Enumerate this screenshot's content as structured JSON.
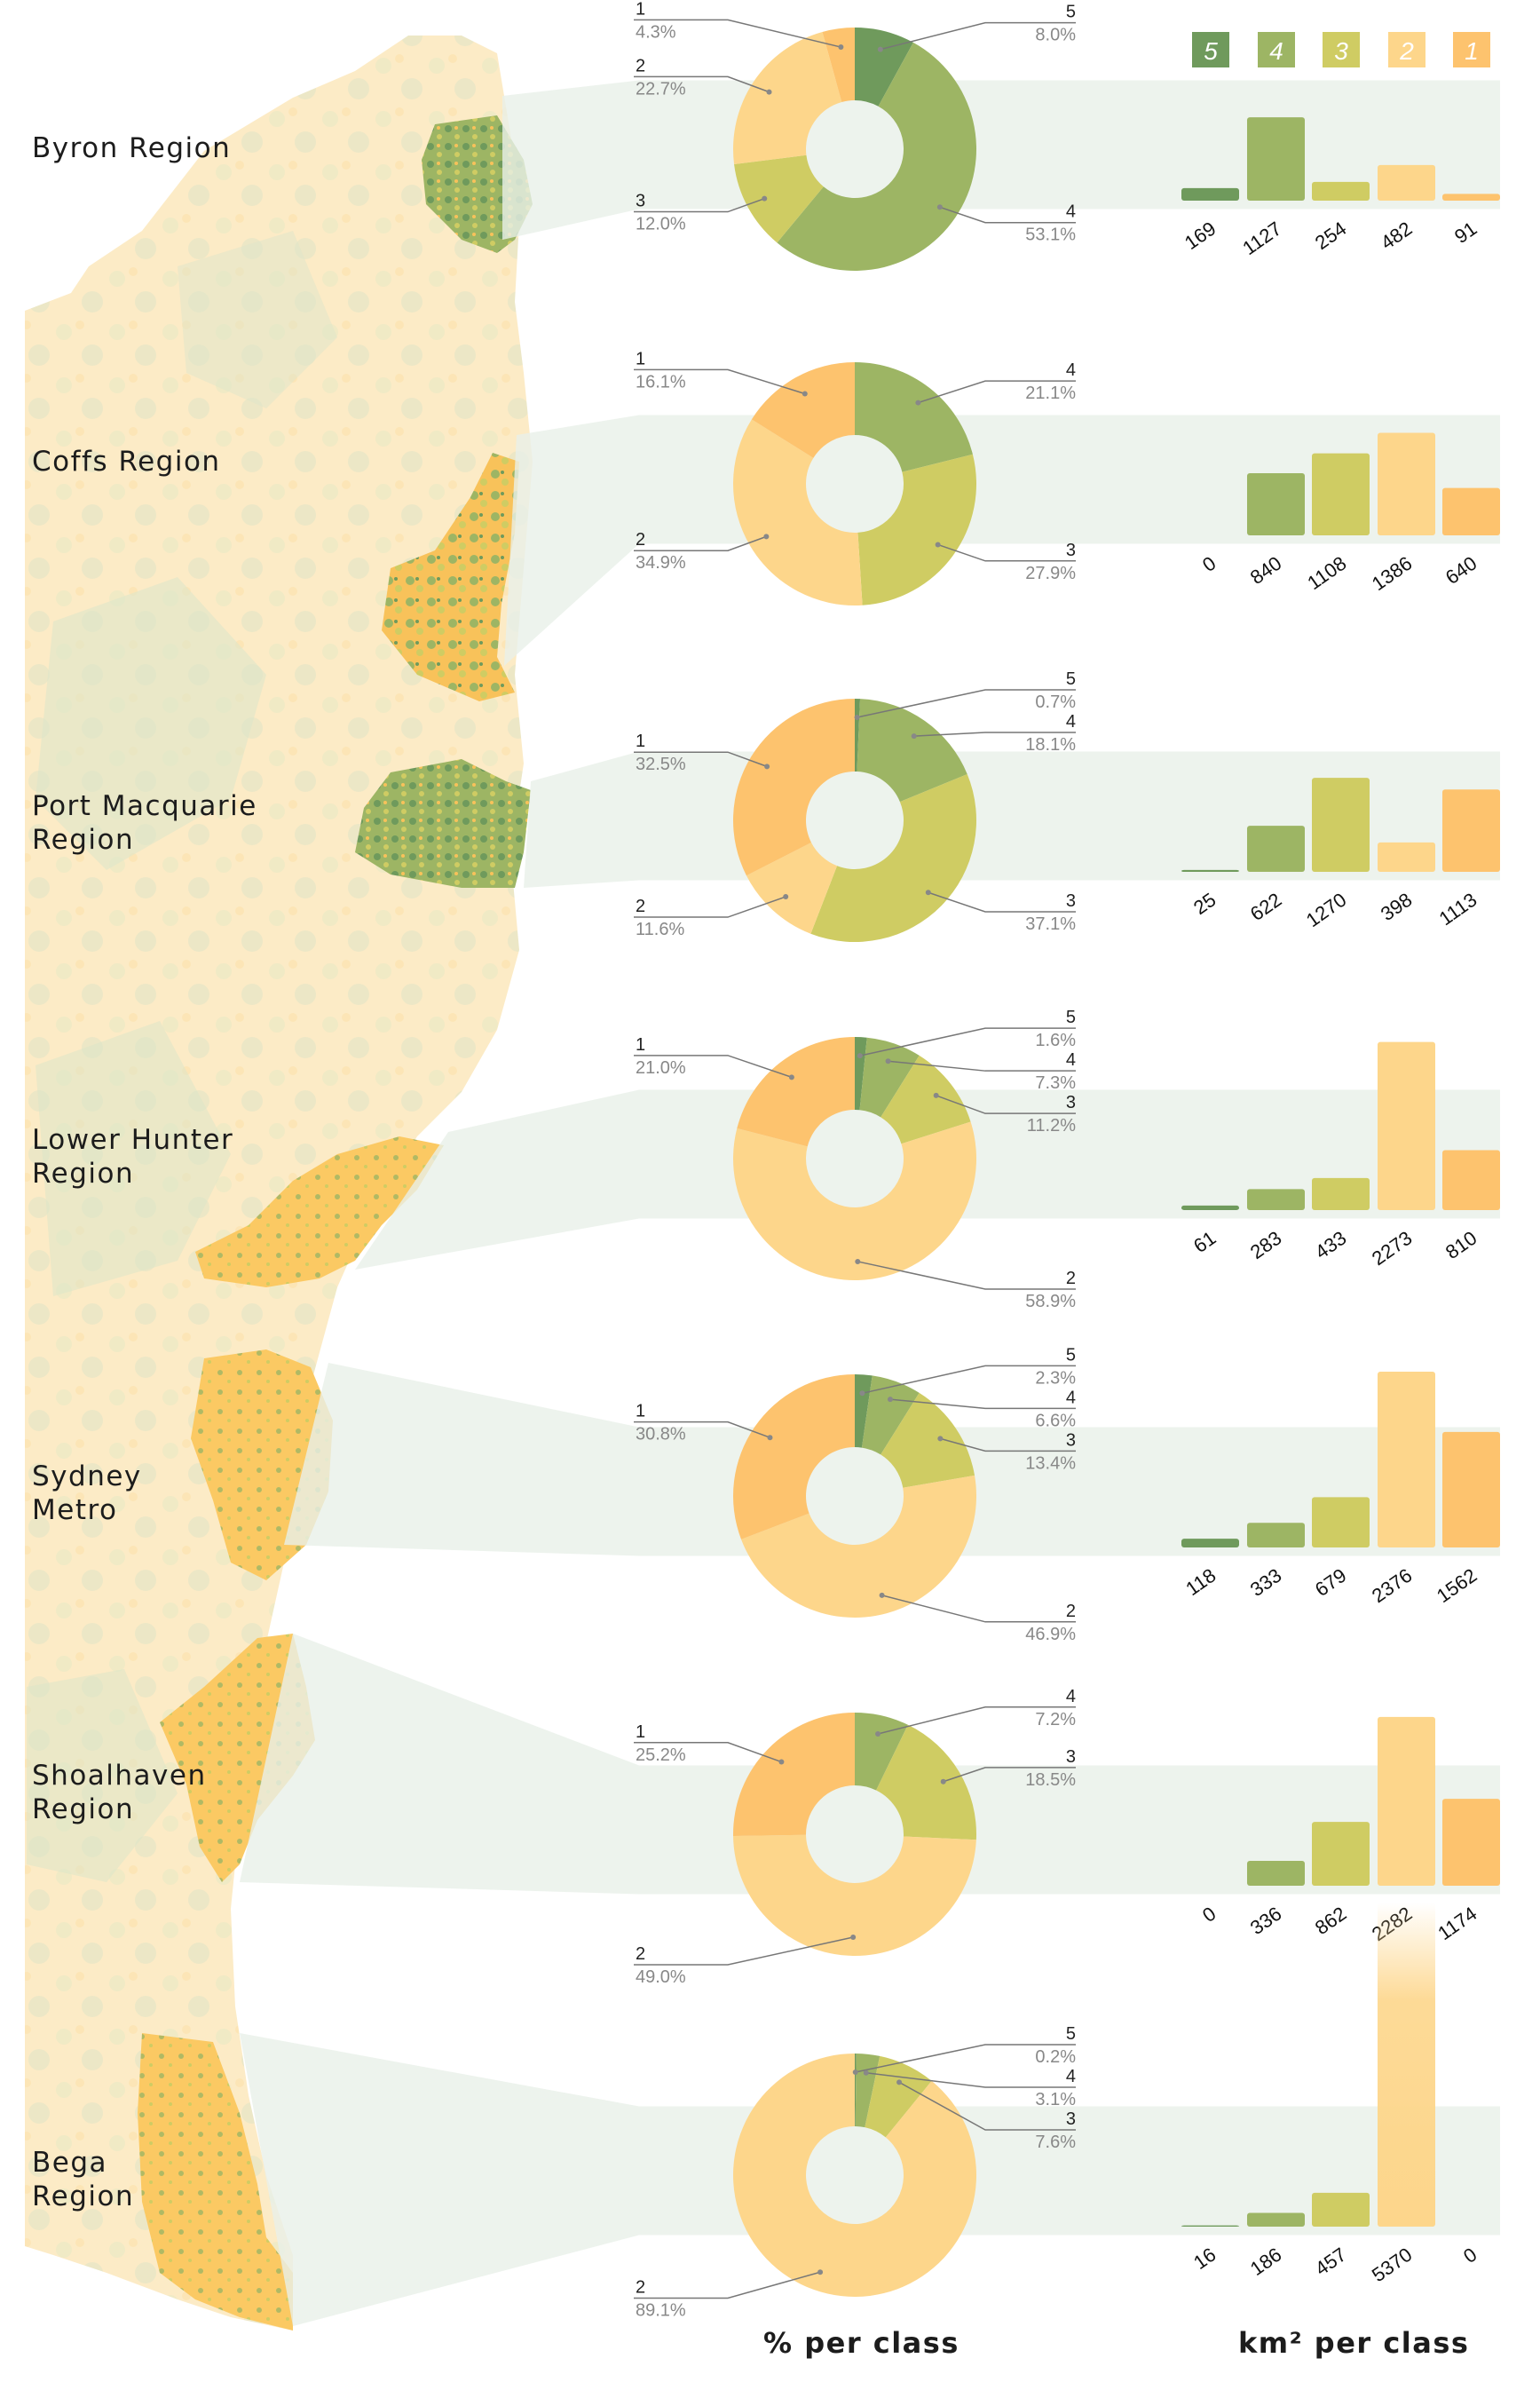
{
  "footer": {
    "pie_label": "% per class",
    "bar_label": "km² per class"
  },
  "legend": [
    "5",
    "4",
    "3",
    "2",
    "1"
  ],
  "class_colors": {
    "5": "#6f9a5c",
    "4": "#9db564",
    "3": "#cfcc63",
    "2": "#fdd68b",
    "1": "#fdc36e"
  },
  "chart_data": [
    {
      "type": "donut",
      "region": "Byron Region",
      "percent": {
        "5": 8.0,
        "4": 53.1,
        "3": 12.0,
        "2": 22.7,
        "1": 4.3
      },
      "percent_labels": {
        "5": "8.0%",
        "4": "53.1%",
        "3": "12.0%",
        "2": "22.7%",
        "1": "4.3%"
      },
      "area_km2": {
        "5": 169,
        "4": 1127,
        "3": 254,
        "2": 482,
        "1": 91
      }
    },
    {
      "type": "donut",
      "region": "Coffs Region",
      "percent": {
        "5": 0,
        "4": 21.1,
        "3": 27.9,
        "2": 34.9,
        "1": 16.1
      },
      "percent_labels": {
        "4": "21.1%",
        "3": "27.9%",
        "2": "34.9%",
        "1": "16.1%"
      },
      "area_km2": {
        "5": 0,
        "4": 840,
        "3": 1108,
        "2": 1386,
        "1": 640
      }
    },
    {
      "type": "donut",
      "region": "Port Macquarie Region",
      "percent": {
        "5": 0.7,
        "4": 18.1,
        "3": 37.1,
        "2": 11.6,
        "1": 32.5
      },
      "percent_labels": {
        "5": "0.7%",
        "4": "18.1%",
        "3": "37.1%",
        "2": "11.6%",
        "1": "32.5%"
      },
      "area_km2": {
        "5": 25,
        "4": 622,
        "3": 1270,
        "2": 398,
        "1": 1113
      }
    },
    {
      "type": "donut",
      "region": "Lower Hunter Region",
      "percent": {
        "5": 1.6,
        "4": 7.3,
        "3": 11.2,
        "2": 58.9,
        "1": 21.0
      },
      "percent_labels": {
        "5": "1.6%",
        "4": "7.3%",
        "3": "11.2%",
        "2": "58.9%",
        "1": "21.0%"
      },
      "area_km2": {
        "5": 61,
        "4": 283,
        "3": 433,
        "2": 2273,
        "1": 810
      }
    },
    {
      "type": "donut",
      "region": "Sydney Metro",
      "percent": {
        "5": 2.3,
        "4": 6.6,
        "3": 13.4,
        "2": 46.9,
        "1": 30.8
      },
      "percent_labels": {
        "5": "2.3%",
        "4": "6.6%",
        "3": "13.4%",
        "2": "46.9%",
        "1": "30.8%"
      },
      "area_km2": {
        "5": 118,
        "4": 333,
        "3": 679,
        "2": 2376,
        "1": 1562
      }
    },
    {
      "type": "donut",
      "region": "Shoalhaven Region",
      "percent": {
        "5": 0,
        "4": 7.2,
        "3": 18.5,
        "2": 49.0,
        "1": 25.2
      },
      "percent_labels": {
        "4": "7.2%",
        "3": "18.5%",
        "2": "49.0%",
        "1": "25.2%"
      },
      "area_km2": {
        "5": 0,
        "4": 336,
        "3": 862,
        "2": 2282,
        "1": 1174
      }
    },
    {
      "type": "donut",
      "region": "Bega Region",
      "percent": {
        "5": 0.2,
        "4": 3.1,
        "3": 7.6,
        "2": 89.1,
        "1": 0
      },
      "percent_labels": {
        "5": "0.2%",
        "4": "3.1%",
        "3": "7.6%",
        "2": "89.1%"
      },
      "area_km2": {
        "5": 16,
        "4": 186,
        "3": 457,
        "2": 5370,
        "1": 0
      }
    }
  ]
}
